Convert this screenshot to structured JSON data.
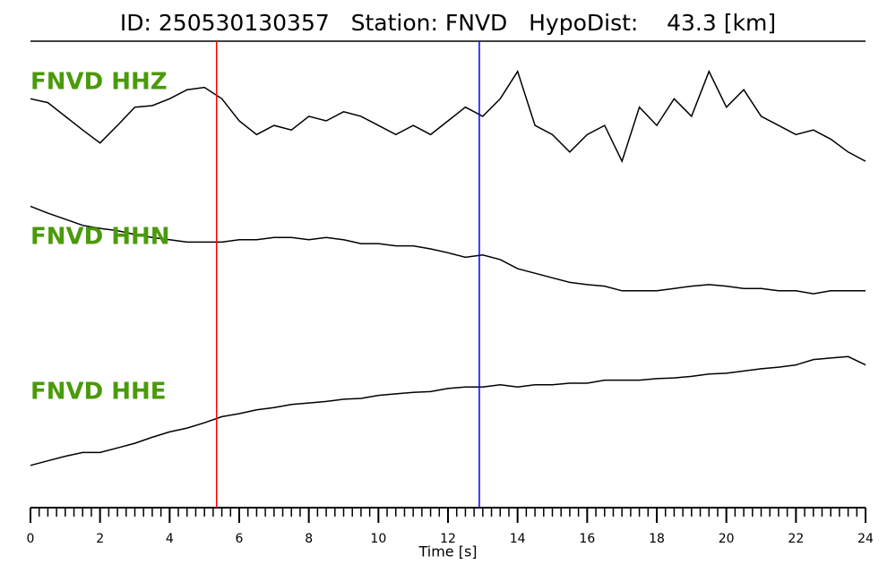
{
  "chart_data": {
    "type": "line",
    "title": "ID: 250530130357   Station: FNVD   HypoDist:    43.3 [km]",
    "xlabel": "Time [s]",
    "xlim": [
      0,
      24
    ],
    "xticks": [
      0,
      2,
      4,
      6,
      8,
      10,
      12,
      14,
      16,
      18,
      20,
      22,
      24
    ],
    "minor_tick_step": 0.25,
    "ylim": [
      -1,
      1
    ],
    "label_color": "#4a9a0a",
    "x": [
      0,
      0.5,
      1,
      1.5,
      2,
      2.5,
      3,
      3.5,
      4,
      4.5,
      5,
      5.5,
      6,
      6.5,
      7,
      7.5,
      8,
      8.5,
      9,
      9.5,
      10,
      10.5,
      11,
      11.5,
      12,
      12.5,
      13,
      13.5,
      14,
      14.5,
      15,
      15.5,
      16,
      16.5,
      17,
      17.5,
      18,
      18.5,
      19,
      19.5,
      20,
      20.5,
      21,
      21.5,
      22,
      22.5,
      23,
      23.5,
      24
    ],
    "series": [
      {
        "name": "FNVD HHZ",
        "color": "#000000",
        "values": [
          0.29,
          0.24,
          0.06,
          -0.12,
          -0.29,
          -0.06,
          0.18,
          0.2,
          0.29,
          0.41,
          0.44,
          0.29,
          0,
          -0.18,
          -0.06,
          -0.12,
          0.06,
          0,
          0.12,
          0.06,
          -0.06,
          -0.18,
          -0.06,
          -0.18,
          0,
          0.18,
          0.06,
          0.29,
          0.65,
          -0.06,
          -0.18,
          -0.41,
          -0.18,
          -0.06,
          -0.53,
          0.18,
          -0.06,
          0.29,
          0.06,
          0.65,
          0.18,
          0.41,
          0.06,
          -0.06,
          -0.18,
          -0.12,
          -0.24,
          -0.41,
          -0.53
        ]
      },
      {
        "name": "FNVD HHN",
        "color": "#000000",
        "values": [
          0.56,
          0.47,
          0.39,
          0.31,
          0.27,
          0.24,
          0.19,
          0.15,
          0.12,
          0.09,
          0.09,
          0.09,
          0.12,
          0.12,
          0.15,
          0.15,
          0.12,
          0.15,
          0.12,
          0.07,
          0.07,
          0.04,
          0.04,
          0,
          -0.05,
          -0.11,
          -0.08,
          -0.14,
          -0.26,
          -0.32,
          -0.38,
          -0.44,
          -0.47,
          -0.49,
          -0.55,
          -0.55,
          -0.55,
          -0.52,
          -0.49,
          -0.47,
          -0.49,
          -0.52,
          -0.52,
          -0.55,
          -0.55,
          -0.59,
          -0.55,
          -0.55,
          -0.55
        ]
      },
      {
        "name": "FNVD HHE",
        "color": "#000000",
        "values": [
          -0.68,
          -0.62,
          -0.56,
          -0.51,
          -0.51,
          -0.45,
          -0.39,
          -0.31,
          -0.24,
          -0.19,
          -0.12,
          -0.04,
          0,
          0.05,
          0.08,
          0.12,
          0.14,
          0.16,
          0.19,
          0.2,
          0.24,
          0.26,
          0.28,
          0.29,
          0.33,
          0.35,
          0.35,
          0.38,
          0.35,
          0.38,
          0.38,
          0.4,
          0.4,
          0.44,
          0.44,
          0.44,
          0.46,
          0.47,
          0.49,
          0.52,
          0.53,
          0.56,
          0.59,
          0.61,
          0.64,
          0.71,
          0.73,
          0.75,
          0.64
        ]
      }
    ],
    "markers": [
      {
        "x": 5.35,
        "color": "#ff0000"
      },
      {
        "x": 12.9,
        "color": "#0000ff"
      }
    ]
  }
}
